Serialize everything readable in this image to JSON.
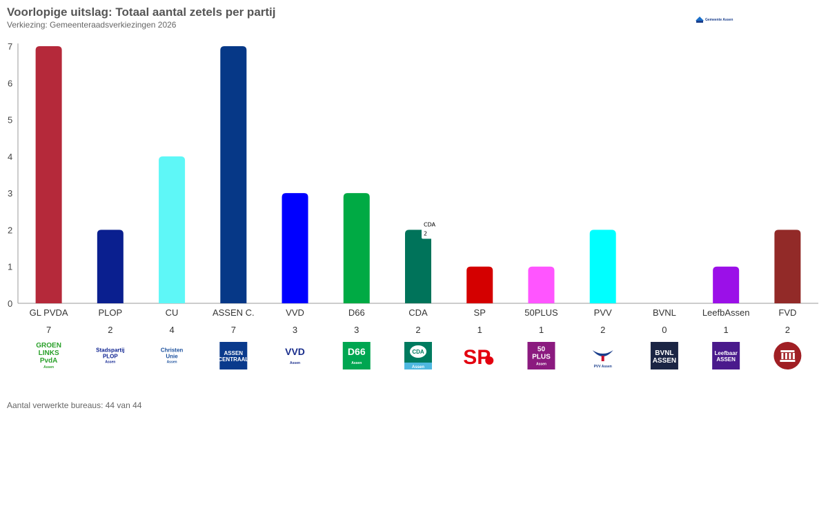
{
  "header": {
    "title": "Voorlopige uitslag: Totaal aantal zetels per partij",
    "subtitle": "Verkiezing: Gemeenteraadsverkiezingen 2026",
    "brand": "Gemeente Assen"
  },
  "footer": {
    "text": "Aantal verwerkte bureaus: 44 van 44"
  },
  "tooltip": {
    "party": "CDA",
    "value": "2"
  },
  "chart_data": {
    "type": "bar",
    "categories": [
      "GL PVDA",
      "PLOP",
      "CU",
      "ASSEN C.",
      "VVD",
      "D66",
      "CDA",
      "SP",
      "50PLUS",
      "PVV",
      "BVNL",
      "LeefbAssen",
      "FVD"
    ],
    "values": [
      7,
      2,
      4,
      7,
      3,
      3,
      2,
      1,
      1,
      2,
      0,
      1,
      2
    ],
    "colors": [
      "#b5293a",
      "#0a1f8f",
      "#5ef7f7",
      "#063887",
      "#0000ff",
      "#00aa44",
      "#00735a",
      "#d40000",
      "#ff55ff",
      "#00ffff",
      "#1b2544",
      "#9b10e8",
      "#922a28"
    ],
    "ylim": [
      0,
      7
    ],
    "yticks": [
      0,
      1,
      2,
      3,
      4,
      5,
      6,
      7
    ],
    "grid": false,
    "title": "Voorlopige uitslag: Totaal aantal zetels per partij",
    "xlabel": "",
    "ylabel": ""
  },
  "logos": [
    {
      "icon": "groenlinks-pvda-logo",
      "lines": [
        "GROEN",
        "LINKS",
        "PvdA"
      ],
      "sub": "Assen",
      "bg": "#ffffff",
      "fg": "#2aa02a"
    },
    {
      "icon": "plop-logo",
      "lines": [
        "Stadspartij",
        "PLOP"
      ],
      "sub": "Assen",
      "bg": "#ffffff",
      "fg": "#0a1f8f"
    },
    {
      "icon": "christenunie-logo",
      "lines": [
        "Christen",
        "Unie"
      ],
      "sub": "Assen",
      "bg": "#ffffff",
      "fg": "#1a4f9c"
    },
    {
      "icon": "assen-centraal-logo",
      "lines": [
        "ASSEN",
        "CENTRAAL"
      ],
      "sub": "",
      "bg": "#0a3a8c",
      "fg": "#ffffff"
    },
    {
      "icon": "vvd-logo",
      "lines": [
        "VVD"
      ],
      "sub": "Assen",
      "bg": "#ffffff",
      "fg": "#1a2e8c"
    },
    {
      "icon": "d66-logo",
      "lines": [
        "D66"
      ],
      "sub": "Assen",
      "bg": "#00a651",
      "fg": "#ffffff"
    },
    {
      "icon": "cda-logo",
      "lines": [
        "CDA"
      ],
      "sub": "Assen",
      "bg": "#007b5f",
      "fg": "#ffffff"
    },
    {
      "icon": "sp-logo",
      "lines": [
        "SP"
      ],
      "sub": "",
      "bg": "#ffffff",
      "fg": "#e3000f"
    },
    {
      "icon": "50plus-logo",
      "lines": [
        "50",
        "PLUS"
      ],
      "sub": "Assen",
      "bg": "#8b1a7f",
      "fg": "#ffffff"
    },
    {
      "icon": "pvv-logo",
      "lines": [
        "PVV Assen"
      ],
      "sub": "",
      "bg": "#ffffff",
      "fg": "#1a3e8c"
    },
    {
      "icon": "bvnl-logo",
      "lines": [
        "BVNL",
        "ASSEN"
      ],
      "sub": "",
      "bg": "#1b2544",
      "fg": "#ffffff"
    },
    {
      "icon": "leefbaar-assen-logo",
      "lines": [
        "Leefbaar",
        "ASSEN"
      ],
      "sub": "",
      "bg": "#4a1a8c",
      "fg": "#ffffff"
    },
    {
      "icon": "fvd-logo",
      "lines": [],
      "sub": "",
      "bg": "#a01f24",
      "fg": "#ffffff"
    }
  ]
}
